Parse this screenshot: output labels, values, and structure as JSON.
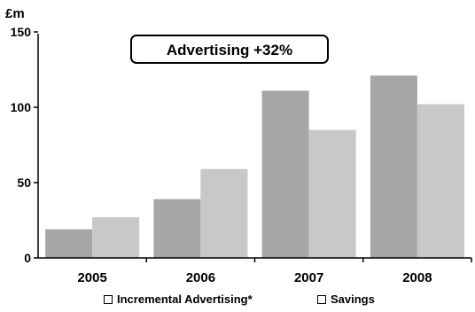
{
  "chart_data": {
    "type": "bar",
    "ylabel": "£m",
    "ylim": [
      0,
      150
    ],
    "yticks": [
      0,
      50,
      100,
      150
    ],
    "categories": [
      "2005",
      "2006",
      "2007",
      "2008"
    ],
    "series": [
      {
        "name": "Incremental Advertising*",
        "color": "#a6a6a6",
        "values": [
          19,
          39,
          111,
          121
        ]
      },
      {
        "name": "Savings",
        "color": "#c8c8c8",
        "values": [
          27,
          59,
          85,
          102
        ]
      }
    ],
    "annotation": "Advertising +32%",
    "legend_position": "bottom",
    "grid": false
  }
}
